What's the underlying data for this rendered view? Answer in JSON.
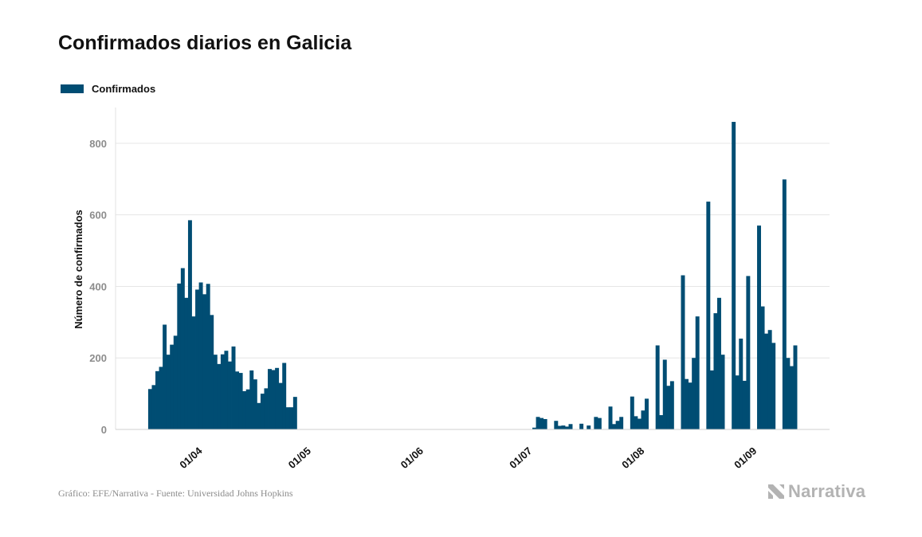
{
  "title": "Confirmados diarios en Galicia",
  "legend": {
    "label": "Confirmados",
    "color": "#004d73"
  },
  "footer": {
    "credit": "Gráfico: EFE/Narrativa - Fuente: Universidad Johns Hopkins"
  },
  "brand": {
    "name": "Narrativa",
    "icon": "narrativa-logo-icon",
    "color": "#b3b3b3"
  },
  "chart_data": {
    "type": "bar",
    "ylabel": "Número de confirmados",
    "xlabel": "",
    "ylim": [
      0,
      900
    ],
    "yticks": [
      0,
      200,
      400,
      600,
      800
    ],
    "grid": true,
    "legend_position": "top-left",
    "xaxis": {
      "type": "date",
      "range": [
        "2020-03-11",
        "2020-09-24"
      ],
      "ticks": [
        {
          "date": "2020-04-01",
          "label": "01/04"
        },
        {
          "date": "2020-05-01",
          "label": "01/05"
        },
        {
          "date": "2020-06-01",
          "label": "01/06"
        },
        {
          "date": "2020-07-01",
          "label": "01/07"
        },
        {
          "date": "2020-08-01",
          "label": "01/08"
        },
        {
          "date": "2020-09-01",
          "label": "01/09"
        }
      ]
    },
    "series": [
      {
        "name": "Confirmados",
        "color": "#004d73",
        "points": [
          [
            "2020-03-20",
            113
          ],
          [
            "2020-03-21",
            124
          ],
          [
            "2020-03-22",
            163
          ],
          [
            "2020-03-23",
            175
          ],
          [
            "2020-03-24",
            293
          ],
          [
            "2020-03-25",
            209
          ],
          [
            "2020-03-26",
            237
          ],
          [
            "2020-03-27",
            262
          ],
          [
            "2020-03-28",
            408
          ],
          [
            "2020-03-29",
            451
          ],
          [
            "2020-03-30",
            368
          ],
          [
            "2020-03-31",
            585
          ],
          [
            "2020-04-01",
            316
          ],
          [
            "2020-04-02",
            391
          ],
          [
            "2020-04-03",
            411
          ],
          [
            "2020-04-04",
            378
          ],
          [
            "2020-04-05",
            407
          ],
          [
            "2020-04-06",
            320
          ],
          [
            "2020-04-07",
            209
          ],
          [
            "2020-04-08",
            183
          ],
          [
            "2020-04-09",
            210
          ],
          [
            "2020-04-10",
            220
          ],
          [
            "2020-04-11",
            190
          ],
          [
            "2020-04-12",
            232
          ],
          [
            "2020-04-13",
            162
          ],
          [
            "2020-04-14",
            158
          ],
          [
            "2020-04-15",
            107
          ],
          [
            "2020-04-16",
            112
          ],
          [
            "2020-04-17",
            165
          ],
          [
            "2020-04-18",
            140
          ],
          [
            "2020-04-19",
            74
          ],
          [
            "2020-04-20",
            100
          ],
          [
            "2020-04-21",
            115
          ],
          [
            "2020-04-22",
            169
          ],
          [
            "2020-04-23",
            166
          ],
          [
            "2020-04-24",
            172
          ],
          [
            "2020-04-25",
            130
          ],
          [
            "2020-04-26",
            186
          ],
          [
            "2020-04-27",
            62
          ],
          [
            "2020-04-28",
            62
          ],
          [
            "2020-04-29",
            91
          ],
          [
            "2020-07-04",
            5
          ],
          [
            "2020-07-05",
            35
          ],
          [
            "2020-07-06",
            32
          ],
          [
            "2020-07-07",
            29
          ],
          [
            "2020-07-10",
            24
          ],
          [
            "2020-07-11",
            10
          ],
          [
            "2020-07-12",
            11
          ],
          [
            "2020-07-13",
            8
          ],
          [
            "2020-07-14",
            15
          ],
          [
            "2020-07-17",
            16
          ],
          [
            "2020-07-19",
            11
          ],
          [
            "2020-07-21",
            35
          ],
          [
            "2020-07-22",
            32
          ],
          [
            "2020-07-25",
            64
          ],
          [
            "2020-07-26",
            15
          ],
          [
            "2020-07-27",
            24
          ],
          [
            "2020-07-28",
            35
          ],
          [
            "2020-07-31",
            92
          ],
          [
            "2020-08-01",
            37
          ],
          [
            "2020-08-02",
            30
          ],
          [
            "2020-08-03",
            53
          ],
          [
            "2020-08-04",
            86
          ],
          [
            "2020-08-07",
            235
          ],
          [
            "2020-08-08",
            40
          ],
          [
            "2020-08-09",
            195
          ],
          [
            "2020-08-10",
            122
          ],
          [
            "2020-08-11",
            135
          ],
          [
            "2020-08-14",
            431
          ],
          [
            "2020-08-15",
            141
          ],
          [
            "2020-08-16",
            131
          ],
          [
            "2020-08-17",
            200
          ],
          [
            "2020-08-18",
            316
          ],
          [
            "2020-08-21",
            637
          ],
          [
            "2020-08-22",
            165
          ],
          [
            "2020-08-23",
            325
          ],
          [
            "2020-08-24",
            368
          ],
          [
            "2020-08-25",
            209
          ],
          [
            "2020-08-28",
            860
          ],
          [
            "2020-08-29",
            151
          ],
          [
            "2020-08-30",
            254
          ],
          [
            "2020-08-31",
            136
          ],
          [
            "2020-09-01",
            429
          ],
          [
            "2020-09-04",
            570
          ],
          [
            "2020-09-05",
            344
          ],
          [
            "2020-09-06",
            268
          ],
          [
            "2020-09-07",
            278
          ],
          [
            "2020-09-08",
            242
          ],
          [
            "2020-09-11",
            699
          ],
          [
            "2020-09-12",
            200
          ],
          [
            "2020-09-13",
            177
          ],
          [
            "2020-09-14",
            235
          ]
        ]
      }
    ]
  }
}
